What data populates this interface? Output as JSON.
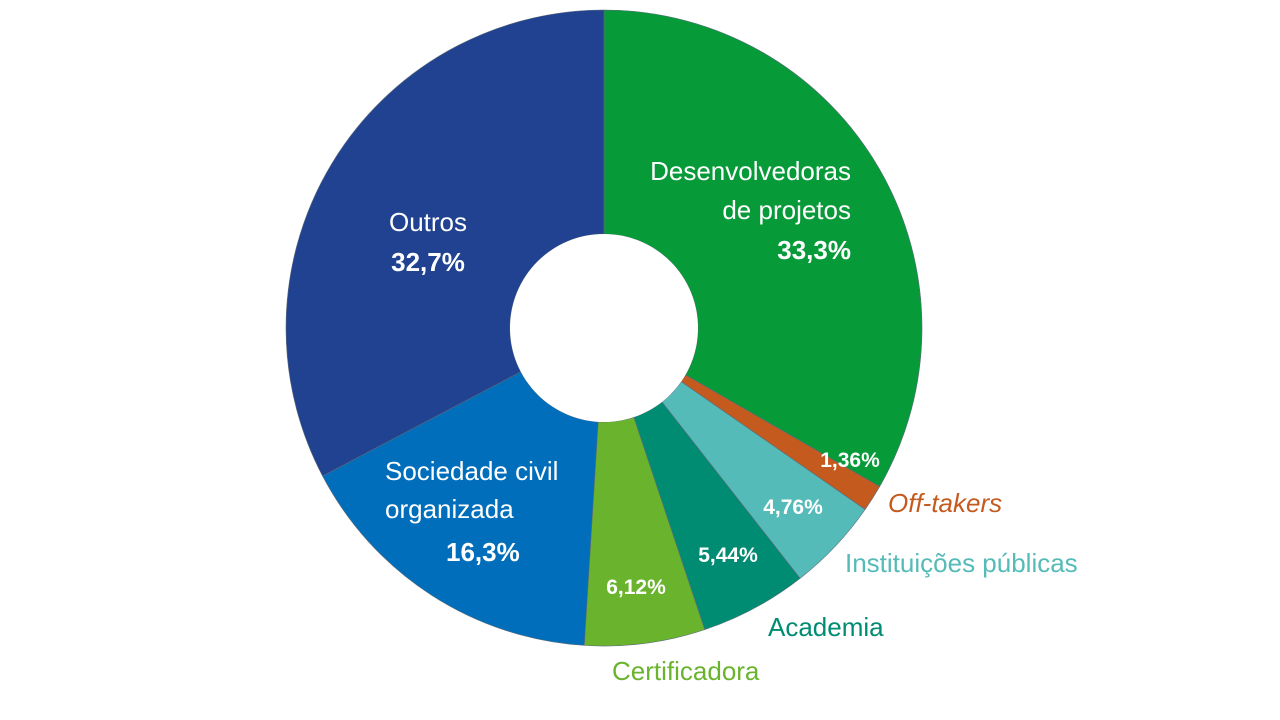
{
  "chart_data": {
    "type": "pie",
    "variant": "donut",
    "title": "",
    "slices": [
      {
        "label_lines": [
          "Desenvolvedoras",
          "de projetos"
        ],
        "value_label": "33,3%",
        "value": 33.3,
        "color": "#079A39",
        "label_position": "inside"
      },
      {
        "label_lines": [
          "Off-takers"
        ],
        "value_label": "1,36%",
        "value": 1.36,
        "color": "#C55A1E",
        "label_position": "outside",
        "label_color": "#C55A1E",
        "label_italic": true
      },
      {
        "label_lines": [
          "Instituições públicas"
        ],
        "value_label": "4,76%",
        "value": 4.76,
        "color": "#55BBB8",
        "label_position": "outside",
        "label_color": "#55BBB8"
      },
      {
        "label_lines": [
          "Academia"
        ],
        "value_label": "5,44%",
        "value": 5.44,
        "color": "#008C73",
        "label_position": "outside",
        "label_color": "#008C73"
      },
      {
        "label_lines": [
          "Certificadora"
        ],
        "value_label": "6,12%",
        "value": 6.12,
        "color": "#6AB42D",
        "label_position": "outside",
        "label_color": "#6AB42D"
      },
      {
        "label_lines": [
          "Sociedade civil",
          "organizada"
        ],
        "value_label": "16,3%",
        "value": 16.3,
        "color": "#006EBA",
        "label_position": "inside"
      },
      {
        "label_lines": [
          "Outros"
        ],
        "value_label": "32,7%",
        "value": 32.7,
        "color": "#214290",
        "label_position": "inside"
      }
    ],
    "start_angle_deg": 0,
    "direction": "clockwise",
    "legend": "none"
  }
}
